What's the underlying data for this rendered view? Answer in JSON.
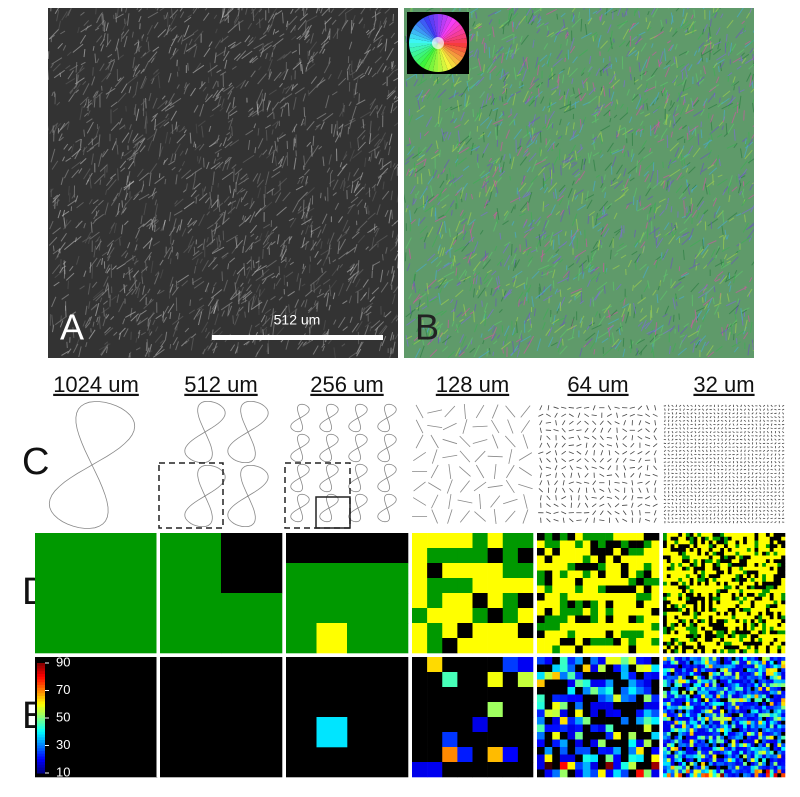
{
  "figure": {
    "panel_a": {
      "label": "A",
      "scale_bar": "512 um"
    },
    "panel_b": {
      "label": "B"
    },
    "scales": [
      "1024 um",
      "512 um",
      "256 um",
      "128 um",
      "64 um",
      "32 um"
    ],
    "rows": [
      "C",
      "D",
      "E"
    ],
    "colorbar": {
      "range": [
        10,
        90
      ],
      "ticks": [
        90,
        70,
        50,
        30,
        10
      ]
    }
  }
}
